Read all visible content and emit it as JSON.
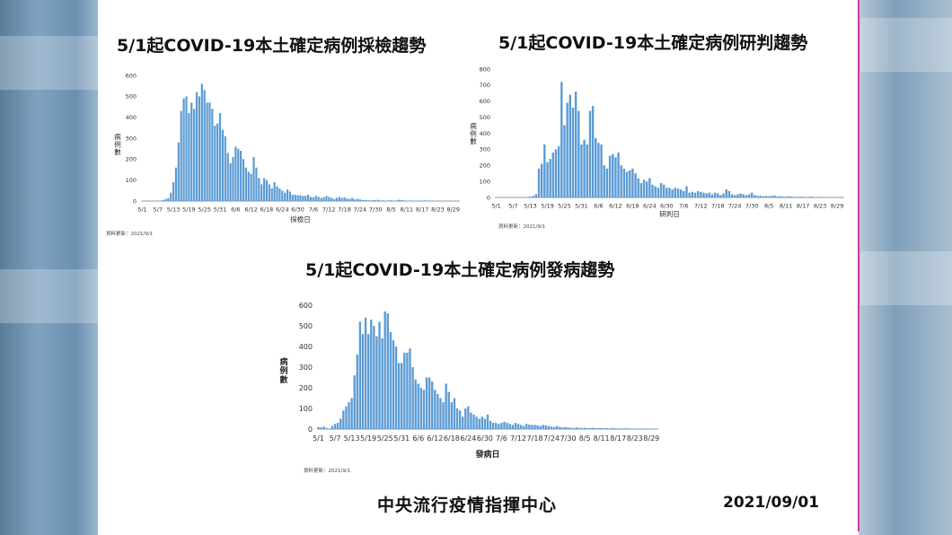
{
  "footer": {
    "org": "中央流行疫情指揮中心",
    "date": "2021/09/01"
  },
  "chart_data": [
    {
      "type": "bar",
      "title": "5/1起COVID-19本土確定病例採檢趨勢",
      "xlabel": "採檢日",
      "ylabel": "病例數",
      "note": "資料更新：2021/9/1",
      "ylim": [
        0,
        600
      ],
      "yticks": [
        0,
        100,
        200,
        300,
        400,
        500,
        600
      ],
      "xtick_labels": [
        "5/1",
        "5/7",
        "5/13",
        "5/19",
        "5/25",
        "5/31",
        "6/6",
        "6/12",
        "6/18",
        "6/24",
        "6/30",
        "7/6",
        "7/12",
        "7/18",
        "7/24",
        "7/30",
        "8/5",
        "8/11",
        "8/17",
        "8/23",
        "8/29"
      ],
      "x_start": "5/1",
      "bar_color": "#5b9bd5",
      "values": [
        0,
        0,
        0,
        0,
        0,
        0,
        0,
        2,
        5,
        10,
        15,
        40,
        90,
        160,
        280,
        430,
        490,
        500,
        420,
        470,
        440,
        520,
        500,
        560,
        530,
        470,
        470,
        440,
        360,
        370,
        420,
        340,
        310,
        230,
        180,
        210,
        260,
        250,
        240,
        200,
        160,
        140,
        130,
        210,
        160,
        110,
        80,
        110,
        100,
        80,
        60,
        90,
        70,
        60,
        50,
        40,
        55,
        45,
        30,
        30,
        28,
        28,
        25,
        25,
        30,
        20,
        18,
        25,
        20,
        15,
        18,
        25,
        20,
        15,
        10,
        15,
        20,
        15,
        18,
        12,
        10,
        15,
        8,
        10,
        8,
        5,
        5,
        4,
        3,
        4,
        5,
        6,
        3,
        3,
        2,
        3,
        4,
        2,
        3,
        6,
        5,
        3,
        2,
        2,
        3,
        2,
        2,
        2,
        2,
        3,
        2,
        2,
        2,
        1,
        2,
        1,
        1,
        2,
        1,
        1,
        1,
        1,
        1
      ]
    },
    {
      "type": "bar",
      "title": "5/1起COVID-19本土確定病例研判趨勢",
      "xlabel": "研判日",
      "ylabel": "病例數",
      "note": "資料更新：2021/9/1",
      "ylim": [
        0,
        800
      ],
      "yticks": [
        0,
        100,
        200,
        300,
        400,
        500,
        600,
        700,
        800
      ],
      "xtick_labels": [
        "5/1",
        "5/7",
        "5/13",
        "5/19",
        "5/25",
        "5/31",
        "6/6",
        "6/12",
        "6/18",
        "6/24",
        "6/30",
        "7/6",
        "7/12",
        "7/18",
        "7/24",
        "7/30",
        "8/5",
        "8/11",
        "8/17",
        "8/23",
        "8/29"
      ],
      "x_start": "5/1",
      "bar_color": "#5b9bd5",
      "values": [
        0,
        0,
        0,
        0,
        0,
        0,
        0,
        0,
        0,
        0,
        0,
        2,
        5,
        10,
        20,
        180,
        210,
        330,
        220,
        240,
        280,
        300,
        320,
        720,
        450,
        590,
        640,
        560,
        660,
        540,
        330,
        360,
        330,
        540,
        570,
        370,
        340,
        330,
        200,
        180,
        260,
        270,
        250,
        280,
        200,
        180,
        160,
        170,
        180,
        150,
        120,
        90,
        110,
        100,
        120,
        80,
        70,
        60,
        90,
        80,
        60,
        60,
        50,
        60,
        55,
        50,
        40,
        70,
        30,
        35,
        30,
        40,
        35,
        30,
        25,
        30,
        20,
        30,
        25,
        15,
        25,
        50,
        40,
        20,
        15,
        20,
        25,
        20,
        15,
        20,
        30,
        15,
        10,
        10,
        8,
        10,
        8,
        10,
        12,
        6,
        8,
        6,
        5,
        8,
        6,
        4,
        4,
        5,
        4,
        3,
        4,
        6,
        3,
        3,
        4,
        3,
        2,
        2,
        3,
        2,
        2,
        3,
        2
      ]
    },
    {
      "type": "bar",
      "title": "5/1起COVID-19本土確定病例發病趨勢",
      "xlabel": "發病日",
      "ylabel": "病例數",
      "note": "資料更新：2021/9/1",
      "ylim": [
        0,
        600
      ],
      "yticks": [
        0,
        100,
        200,
        300,
        400,
        500,
        600
      ],
      "xtick_labels": [
        "5/1",
        "5/7",
        "5/13",
        "5/19",
        "5/25",
        "5/31",
        "6/6",
        "6/12",
        "6/18",
        "6/24",
        "6/30",
        "7/6",
        "7/12",
        "7/18",
        "7/24",
        "7/30",
        "8/5",
        "8/11",
        "8/17",
        "8/23",
        "8/29"
      ],
      "x_start": "5/1",
      "bar_color": "#5b9bd5",
      "values": [
        10,
        8,
        12,
        5,
        3,
        15,
        25,
        30,
        50,
        90,
        110,
        130,
        150,
        260,
        360,
        520,
        460,
        540,
        460,
        530,
        500,
        450,
        520,
        440,
        570,
        560,
        470,
        430,
        400,
        320,
        320,
        370,
        370,
        390,
        300,
        240,
        220,
        200,
        190,
        250,
        250,
        230,
        190,
        170,
        150,
        130,
        220,
        180,
        130,
        150,
        100,
        90,
        60,
        100,
        110,
        80,
        70,
        60,
        50,
        60,
        50,
        70,
        40,
        30,
        30,
        25,
        30,
        35,
        30,
        25,
        20,
        30,
        25,
        20,
        15,
        25,
        22,
        20,
        20,
        18,
        15,
        20,
        18,
        15,
        12,
        10,
        15,
        10,
        8,
        10,
        8,
        6,
        5,
        8,
        6,
        5,
        6,
        4,
        5,
        6,
        4,
        5,
        5,
        4,
        5,
        3,
        5,
        4,
        3,
        3,
        3,
        4,
        3,
        2,
        3,
        2,
        2,
        2,
        2,
        2,
        1,
        1,
        1
      ]
    }
  ]
}
